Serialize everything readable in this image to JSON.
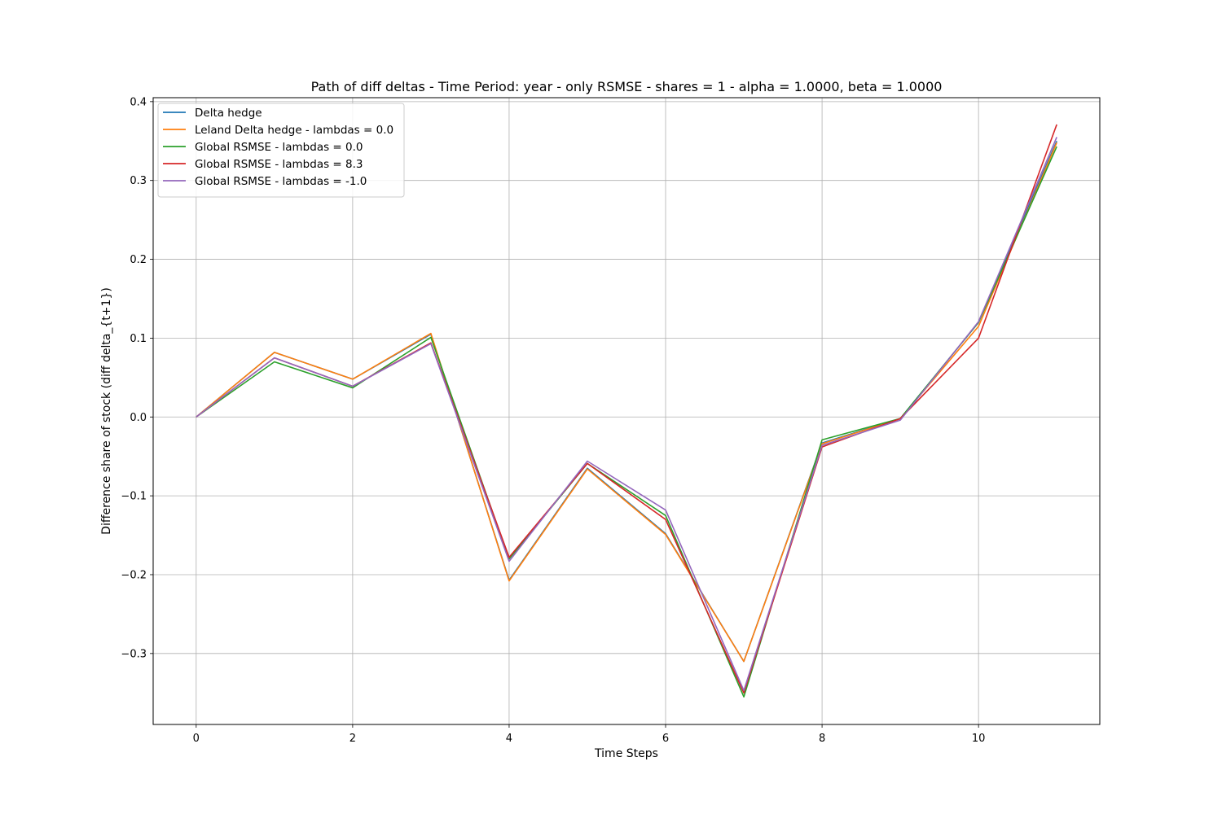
{
  "chart_data": {
    "type": "line",
    "title": "Path of diff deltas - Time Period: year - only RSMSE - shares = 1 - alpha = 1.0000, beta = 1.0000",
    "xlabel": "Time Steps",
    "ylabel": "Difference share of stock (diff delta_{t+1})",
    "xlim": [
      -0.55,
      11.55
    ],
    "ylim": [
      -0.39,
      0.405
    ],
    "xticks": [
      0,
      2,
      4,
      6,
      8,
      10
    ],
    "xtick_labels": [
      "0",
      "2",
      "4",
      "6",
      "8",
      "10"
    ],
    "yticks": [
      -0.3,
      -0.2,
      -0.1,
      0.0,
      0.1,
      0.2,
      0.3,
      0.4
    ],
    "ytick_labels": [
      "−0.3",
      "−0.2",
      "−0.1",
      "0.0",
      "0.1",
      "0.2",
      "0.3",
      "0.4"
    ],
    "grid": true,
    "legend_position": "upper-left",
    "x": [
      0,
      1,
      2,
      3,
      4,
      5,
      6,
      7,
      8,
      9,
      10,
      11
    ],
    "series": [
      {
        "name": "Delta hedge",
        "color": "#1f77b4",
        "values": [
          0.0,
          0.082,
          0.048,
          0.105,
          -0.207,
          -0.065,
          -0.148,
          -0.31,
          -0.033,
          -0.002,
          0.12,
          0.35
        ]
      },
      {
        "name": "Leland Delta hedge - lambdas = 0.0",
        "color": "#ff7f0e",
        "values": [
          0.0,
          0.082,
          0.048,
          0.106,
          -0.208,
          -0.066,
          -0.149,
          -0.31,
          -0.034,
          -0.002,
          0.115,
          0.348
        ]
      },
      {
        "name": "Global RSMSE - lambdas = 0.0",
        "color": "#2ca02c",
        "values": [
          0.0,
          0.07,
          0.037,
          0.101,
          -0.18,
          -0.059,
          -0.125,
          -0.355,
          -0.029,
          -0.002,
          0.12,
          0.343
        ]
      },
      {
        "name": "Global RSMSE - lambdas = 8.3",
        "color": "#d62728",
        "values": [
          0.0,
          0.075,
          0.039,
          0.094,
          -0.178,
          -0.059,
          -0.13,
          -0.35,
          -0.038,
          -0.002,
          0.1,
          0.371
        ]
      },
      {
        "name": "Global RSMSE - lambdas = -1.0",
        "color": "#9467bd",
        "values": [
          0.0,
          0.075,
          0.039,
          0.093,
          -0.183,
          -0.056,
          -0.118,
          -0.347,
          -0.036,
          -0.004,
          0.121,
          0.355
        ]
      }
    ]
  }
}
